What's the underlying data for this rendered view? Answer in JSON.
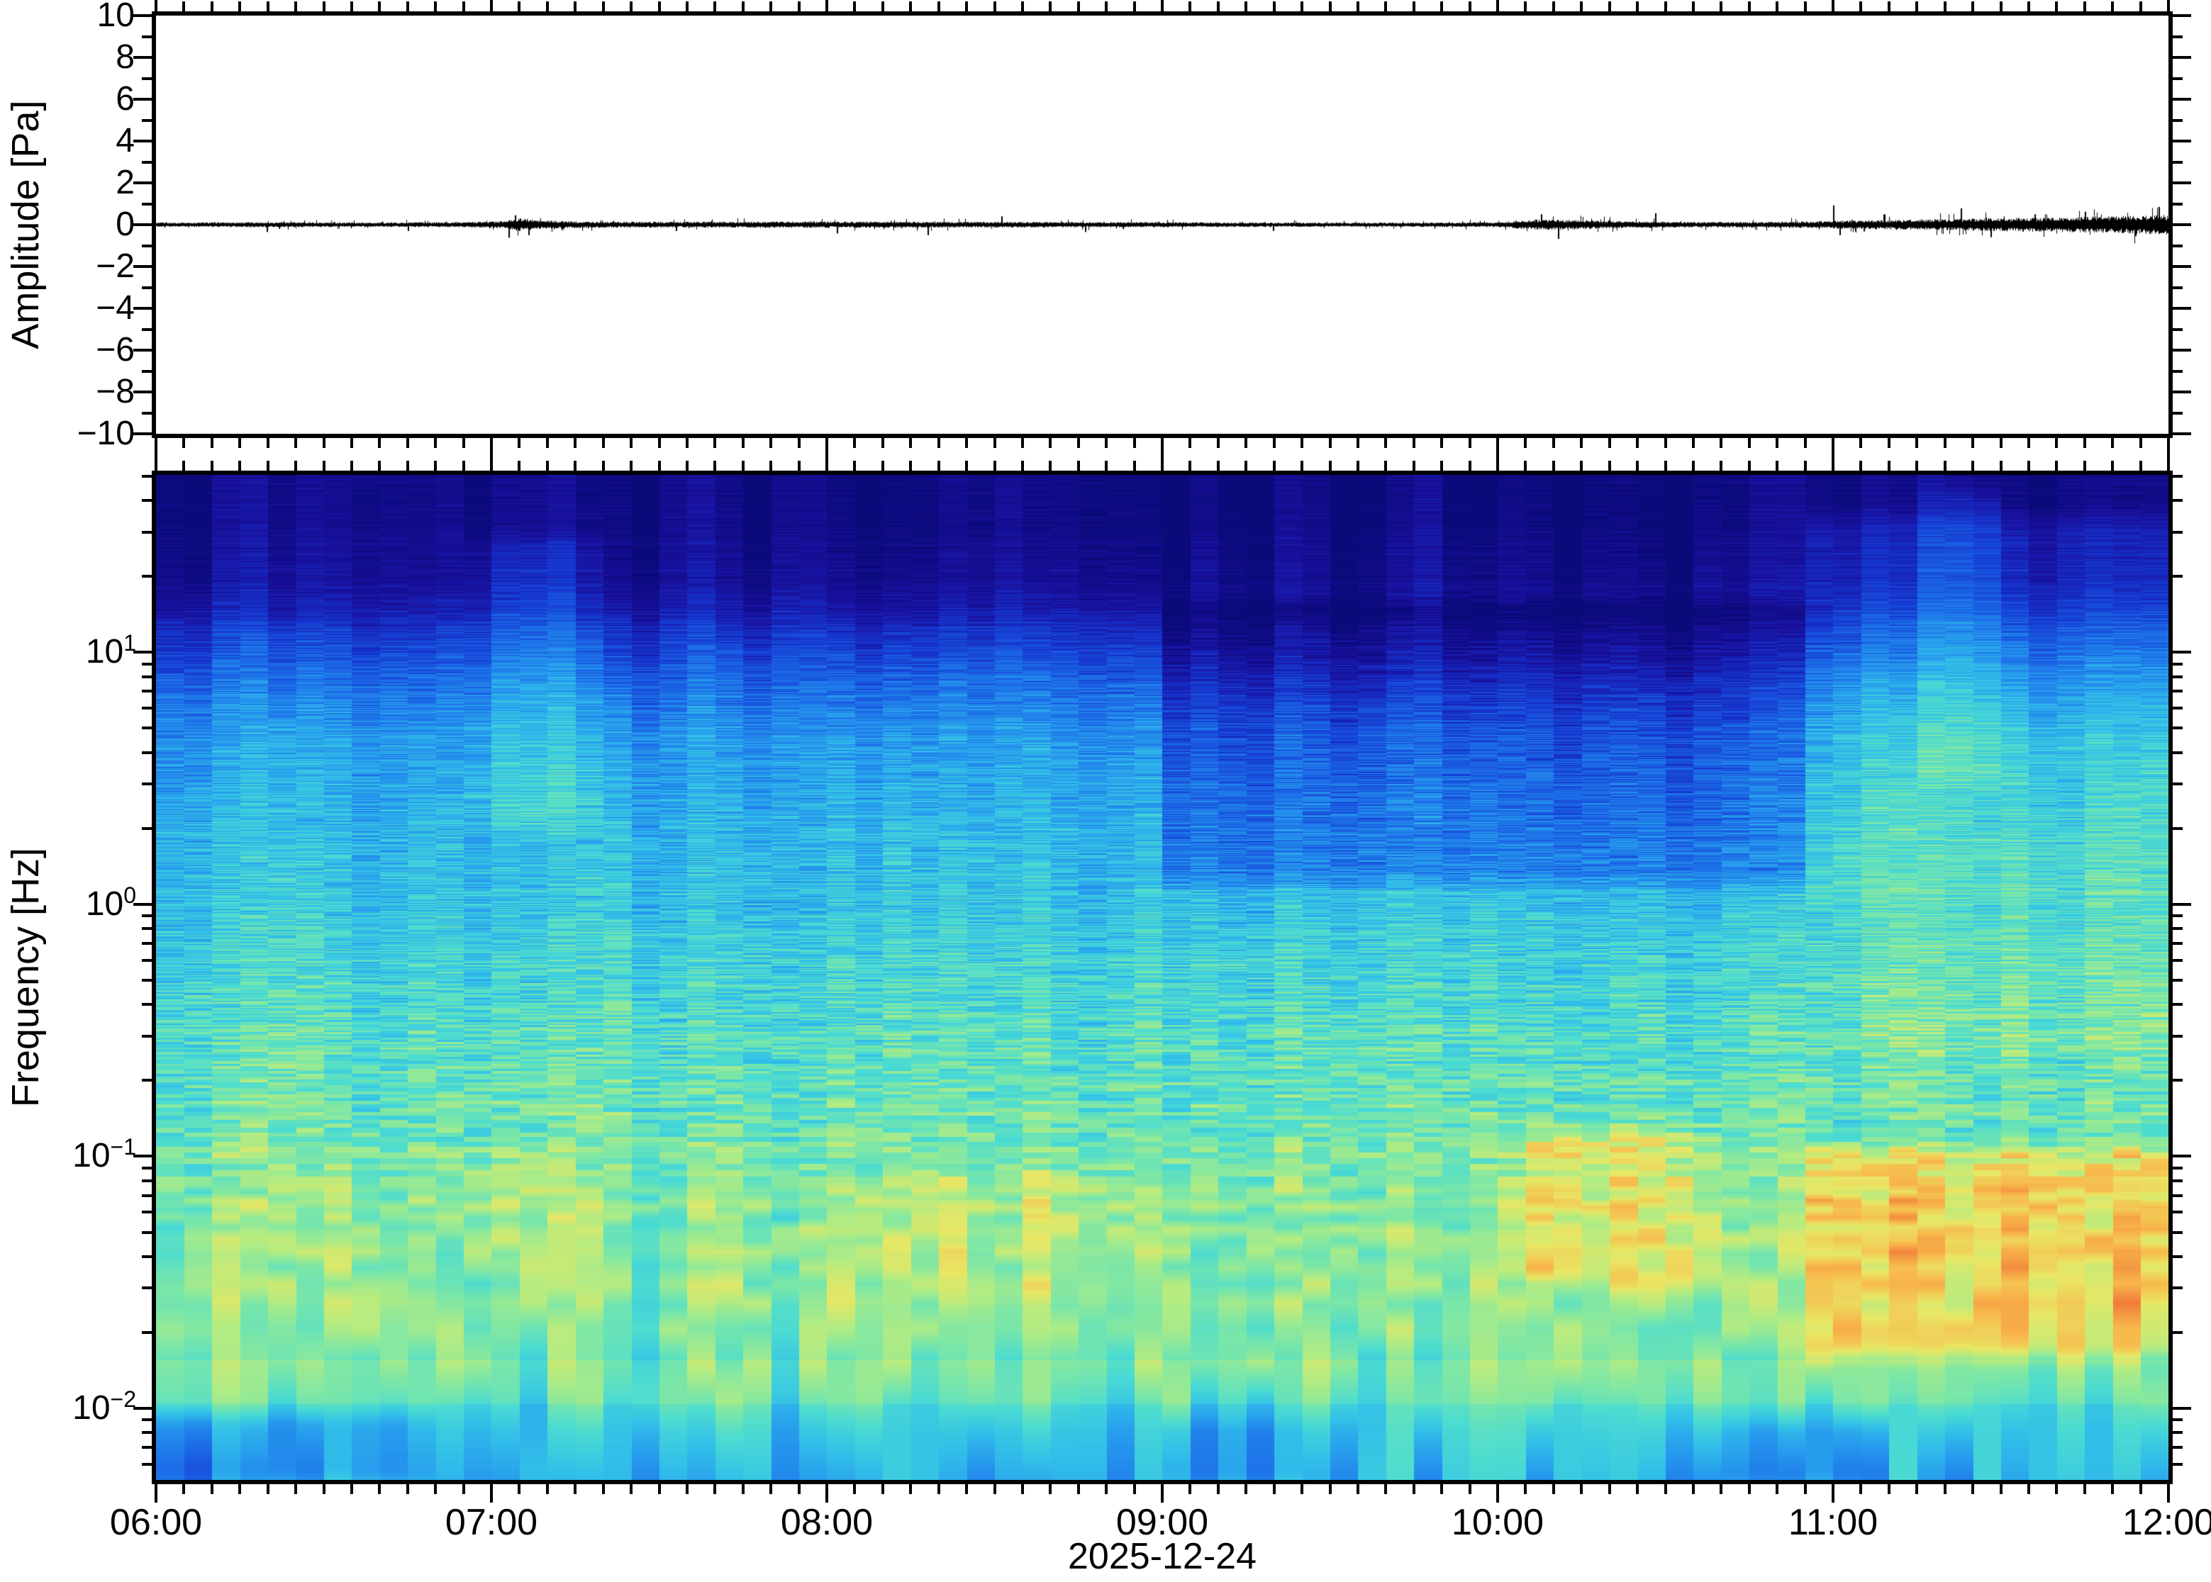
{
  "figure": {
    "amplitude_panel": {
      "ylabel": "Amplitude [Pa]",
      "y_tick_labels": [
        "10",
        "8",
        "6",
        "4",
        "2",
        "0",
        "−2",
        "−4",
        "−6",
        "−8",
        "−10"
      ],
      "y_tick_values": [
        10,
        8,
        6,
        4,
        2,
        0,
        -2,
        -4,
        -6,
        -8,
        -10
      ],
      "y_minor_step": 1,
      "y_range": [
        -10,
        10
      ]
    },
    "spectrogram_panel": {
      "ylabel": "Frequency [Hz]",
      "y_tick_exponent_labels": [
        "1",
        "0",
        "−1",
        "−2"
      ],
      "y_tick_exponents": [
        1,
        0,
        -1,
        -2
      ],
      "y_tick_mantissa": "10",
      "freq_min_hz": 0.0052,
      "freq_max_hz": 50.6
    },
    "x_axis": {
      "hour_labels": [
        "06:00",
        "07:00",
        "08:00",
        "09:00",
        "10:00",
        "11:00",
        "12:00"
      ],
      "minor_interval_minutes": 5,
      "date_label": "2025-12-24"
    }
  },
  "chart_data": [
    {
      "type": "line",
      "name": "pressure-waveform",
      "xlabel": "time (06:00-12:00)",
      "ylabel": "Amplitude [Pa]",
      "x_range_hours": [
        6,
        12
      ],
      "ylim": [
        -10,
        10
      ],
      "line_color": "#000000",
      "noise_envelope_pa": [
        [
          6.0,
          0.05
        ],
        [
          6.3,
          0.062
        ],
        [
          6.6,
          0.052
        ],
        [
          6.9,
          0.06
        ],
        [
          7.04,
          0.09
        ],
        [
          7.08,
          0.16
        ],
        [
          7.15,
          0.1
        ],
        [
          7.3,
          0.075
        ],
        [
          7.6,
          0.07
        ],
        [
          7.9,
          0.08
        ],
        [
          8.1,
          0.075
        ],
        [
          8.4,
          0.07
        ],
        [
          8.7,
          0.065
        ],
        [
          9.0,
          0.06
        ],
        [
          9.3,
          0.052
        ],
        [
          9.7,
          0.05
        ],
        [
          10.0,
          0.06
        ],
        [
          10.12,
          0.13
        ],
        [
          10.25,
          0.11
        ],
        [
          10.4,
          0.08
        ],
        [
          10.6,
          0.065
        ],
        [
          10.8,
          0.07
        ],
        [
          10.95,
          0.085
        ],
        [
          11.05,
          0.1
        ],
        [
          11.2,
          0.12
        ],
        [
          11.35,
          0.14
        ],
        [
          11.5,
          0.16
        ],
        [
          11.65,
          0.17
        ],
        [
          11.8,
          0.2
        ],
        [
          11.92,
          0.22
        ],
        [
          12.0,
          0.24
        ]
      ],
      "spikes_pa": [
        [
          6.33,
          -0.35
        ],
        [
          6.75,
          -0.3
        ],
        [
          7.05,
          -0.62
        ],
        [
          7.07,
          0.45
        ],
        [
          7.11,
          -0.5
        ],
        [
          7.55,
          -0.3
        ],
        [
          8.03,
          -0.42
        ],
        [
          8.3,
          -0.5
        ],
        [
          8.52,
          0.4
        ],
        [
          8.77,
          -0.35
        ],
        [
          9.33,
          -0.3
        ],
        [
          10.13,
          0.5
        ],
        [
          10.18,
          -0.68
        ],
        [
          10.47,
          0.55
        ],
        [
          11.0,
          0.92
        ],
        [
          11.02,
          -0.5
        ],
        [
          11.15,
          0.5
        ],
        [
          11.38,
          0.78
        ],
        [
          11.47,
          -0.6
        ],
        [
          11.6,
          0.5
        ],
        [
          11.75,
          0.62
        ],
        [
          11.9,
          -0.55
        ],
        [
          11.97,
          0.85
        ]
      ]
    },
    {
      "type": "heatmap",
      "name": "spectrogram",
      "x_range_hours": [
        6,
        12
      ],
      "time_bin_minutes": 5,
      "freq_range_hz": [
        0.0052,
        50.6
      ],
      "y_scale": "log",
      "colormap_stops": [
        [
          0.0,
          "#0a0a78"
        ],
        [
          0.1,
          "#1a119e"
        ],
        [
          0.2,
          "#1633cc"
        ],
        [
          0.3,
          "#1b64e6"
        ],
        [
          0.4,
          "#2697ee"
        ],
        [
          0.48,
          "#33c0e9"
        ],
        [
          0.56,
          "#4cdcd2"
        ],
        [
          0.64,
          "#7ce7a8"
        ],
        [
          0.72,
          "#b4ec82"
        ],
        [
          0.8,
          "#e9e765"
        ],
        [
          0.88,
          "#f8b94c"
        ],
        [
          1.0,
          "#f07038"
        ]
      ],
      "base_profile_freq_intensity": [
        [
          50,
          0.03
        ],
        [
          30,
          0.045
        ],
        [
          20,
          0.075
        ],
        [
          15,
          0.13
        ],
        [
          10,
          0.25
        ],
        [
          7,
          0.33
        ],
        [
          5,
          0.39
        ],
        [
          3,
          0.44
        ],
        [
          2,
          0.465
        ],
        [
          1,
          0.5
        ],
        [
          0.6,
          0.535
        ],
        [
          0.3,
          0.575
        ],
        [
          0.15,
          0.615
        ],
        [
          0.08,
          0.655
        ],
        [
          0.05,
          0.675
        ],
        [
          0.03,
          0.685
        ],
        [
          0.02,
          0.675
        ],
        [
          0.012,
          0.6
        ],
        [
          0.008,
          0.52
        ],
        [
          0.0052,
          0.475
        ]
      ],
      "anomalies": [
        {
          "t": [
            9.0,
            10.95
          ],
          "f": [
            1.2,
            16
          ],
          "du": -0.12
        },
        {
          "t": [
            10.92,
            12.0
          ],
          "f": [
            1,
            35
          ],
          "du": 0.09
        },
        {
          "t": [
            11.28,
            11.52
          ],
          "f": [
            3,
            45
          ],
          "du": 0.08
        },
        {
          "t": [
            10.05,
            10.62
          ],
          "f": [
            0.03,
            0.13
          ],
          "du": 0.14
        },
        {
          "t": [
            10.9,
            12.0
          ],
          "f": [
            0.016,
            0.105
          ],
          "du": 0.17
        },
        {
          "t": [
            6.0,
            6.8
          ],
          "f": [
            0.0052,
            0.0095
          ],
          "du": -0.1
        },
        {
          "t": [
            9.0,
            9.45
          ],
          "f": [
            0.0052,
            0.009
          ],
          "du": -0.06
        },
        {
          "t": [
            10.7,
            11.15
          ],
          "f": [
            0.0052,
            0.009
          ],
          "du": -0.07
        },
        {
          "t": [
            6.95,
            7.3
          ],
          "f": [
            2,
            28
          ],
          "du": 0.08
        },
        {
          "t": [
            6.95,
            7.25
          ],
          "f": [
            0.035,
            0.1
          ],
          "du": 0.08
        },
        {
          "t": [
            8.15,
            8.9
          ],
          "f": [
            0.028,
            0.09
          ],
          "du": 0.05
        },
        {
          "t": [
            11.0,
            12.0
          ],
          "f": [
            0.25,
            1.0
          ],
          "du": 0.06
        }
      ],
      "striation_by_logf": [
        [
          1.71,
          0.03
        ],
        [
          1.3,
          0.035
        ],
        [
          1.0,
          0.06
        ],
        [
          0.3,
          0.085
        ],
        [
          -0.3,
          0.09
        ],
        [
          -1.3,
          0.08
        ],
        [
          -2.28,
          0.085
        ]
      ]
    }
  ]
}
